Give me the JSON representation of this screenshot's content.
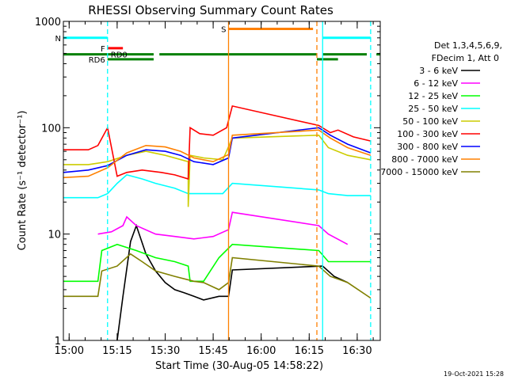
{
  "chart_data": {
    "type": "line",
    "title": "RHESSI Observing Summary Count Rates",
    "xlabel": "Start Time (30-Aug-05 14:58:22)",
    "ylabel": "Count Rate (s⁻¹ detector⁻¹)",
    "y_scale": "log",
    "ylim": [
      1,
      1000
    ],
    "xlim_minutes": [
      14.97,
      16.62
    ],
    "x_tick_labels": [
      "15:00",
      "15:15",
      "15:30",
      "15:45",
      "16:00",
      "16:15",
      "16:30"
    ],
    "y_tick_labels": [
      "1",
      "10",
      "100",
      "1000"
    ],
    "grid": false,
    "legend_position": "right",
    "legend_header": [
      "Det 1,3,4,5,6,9,",
      "FDecim 1, Att 0"
    ],
    "series": [
      {
        "name": "3 - 6 keV",
        "color": "#000000",
        "points": [
          [
            15.25,
            1.0
          ],
          [
            15.28,
            2.6
          ],
          [
            15.32,
            8.5
          ],
          [
            15.35,
            12.0
          ],
          [
            15.4,
            6.5
          ],
          [
            15.45,
            4.5
          ],
          [
            15.5,
            3.5
          ],
          [
            15.55,
            3.0
          ],
          [
            15.6,
            2.8
          ],
          [
            15.65,
            2.6
          ],
          [
            15.7,
            2.4
          ],
          [
            15.78,
            2.6
          ],
          [
            15.83,
            2.6
          ],
          [
            15.85,
            4.6
          ],
          [
            16.32,
            5.0
          ],
          [
            16.38,
            4.0
          ],
          [
            16.45,
            3.5
          ]
        ]
      },
      {
        "name": "6 - 12 keV",
        "color": "#ff00ff",
        "points": [
          [
            15.15,
            10.0
          ],
          [
            15.22,
            10.5
          ],
          [
            15.28,
            12.0
          ],
          [
            15.3,
            14.5
          ],
          [
            15.35,
            12.0
          ],
          [
            15.45,
            10.0
          ],
          [
            15.55,
            9.5
          ],
          [
            15.65,
            9.0
          ],
          [
            15.75,
            9.5
          ],
          [
            15.83,
            11.0
          ],
          [
            15.85,
            16.0
          ],
          [
            16.3,
            12.0
          ],
          [
            16.35,
            10.0
          ],
          [
            16.45,
            8.0
          ]
        ]
      },
      {
        "name": "12 - 25 keV",
        "color": "#00ff00",
        "points": [
          [
            14.97,
            3.6
          ],
          [
            15.15,
            3.6
          ],
          [
            15.17,
            7.0
          ],
          [
            15.25,
            8.0
          ],
          [
            15.35,
            7.0
          ],
          [
            15.45,
            6.0
          ],
          [
            15.55,
            5.5
          ],
          [
            15.62,
            5.0
          ],
          [
            15.63,
            3.6
          ],
          [
            15.7,
            3.6
          ],
          [
            15.78,
            6.0
          ],
          [
            15.85,
            8.0
          ],
          [
            16.3,
            7.0
          ],
          [
            16.35,
            5.5
          ],
          [
            16.4,
            5.5
          ],
          [
            16.57,
            5.5
          ]
        ]
      },
      {
        "name": "25 - 50 keV",
        "color": "#00ffff",
        "points": [
          [
            14.97,
            22.0
          ],
          [
            15.15,
            22.0
          ],
          [
            15.2,
            24.0
          ],
          [
            15.25,
            30.0
          ],
          [
            15.3,
            36.0
          ],
          [
            15.38,
            33.0
          ],
          [
            15.45,
            30.0
          ],
          [
            15.55,
            27.0
          ],
          [
            15.62,
            24.0
          ],
          [
            15.7,
            24.0
          ],
          [
            15.8,
            24.0
          ],
          [
            15.85,
            30.0
          ],
          [
            16.3,
            26.0
          ],
          [
            16.35,
            24.0
          ],
          [
            16.45,
            23.0
          ],
          [
            16.57,
            23.0
          ]
        ]
      },
      {
        "name": "50 - 100 keV",
        "color": "#cccc00",
        "points": [
          [
            14.97,
            45.0
          ],
          [
            15.1,
            45.0
          ],
          [
            15.2,
            48.0
          ],
          [
            15.3,
            55.0
          ],
          [
            15.4,
            60.0
          ],
          [
            15.5,
            55.0
          ],
          [
            15.62,
            48.0
          ],
          [
            15.62,
            18.0
          ],
          [
            15.63,
            55.0
          ],
          [
            15.7,
            52.0
          ],
          [
            15.8,
            50.0
          ],
          [
            15.85,
            80.0
          ],
          [
            16.3,
            85.0
          ],
          [
            16.35,
            65.0
          ],
          [
            16.45,
            55.0
          ],
          [
            16.57,
            50.0
          ]
        ]
      },
      {
        "name": "100 - 300 keV",
        "color": "#ff0000",
        "points": [
          [
            14.97,
            62.0
          ],
          [
            15.1,
            62.0
          ],
          [
            15.15,
            68.0
          ],
          [
            15.2,
            100.0
          ],
          [
            15.25,
            35.0
          ],
          [
            15.3,
            38.0
          ],
          [
            15.38,
            40.0
          ],
          [
            15.48,
            38.0
          ],
          [
            15.55,
            36.0
          ],
          [
            15.62,
            33.0
          ],
          [
            15.63,
            100.0
          ],
          [
            15.68,
            88.0
          ],
          [
            15.75,
            85.0
          ],
          [
            15.82,
            100.0
          ],
          [
            15.85,
            160.0
          ],
          [
            16.3,
            105.0
          ],
          [
            16.36,
            90.0
          ],
          [
            16.4,
            95.0
          ],
          [
            16.48,
            82.0
          ],
          [
            16.57,
            75.0
          ]
        ]
      },
      {
        "name": "300 - 800 keV",
        "color": "#0000ff",
        "points": [
          [
            14.97,
            38.0
          ],
          [
            15.1,
            40.0
          ],
          [
            15.2,
            44.0
          ],
          [
            15.3,
            55.0
          ],
          [
            15.4,
            62.0
          ],
          [
            15.5,
            60.0
          ],
          [
            15.58,
            55.0
          ],
          [
            15.65,
            48.0
          ],
          [
            15.75,
            45.0
          ],
          [
            15.83,
            52.0
          ],
          [
            15.85,
            80.0
          ],
          [
            16.3,
            100.0
          ],
          [
            16.36,
            85.0
          ],
          [
            16.45,
            70.0
          ],
          [
            16.57,
            58.0
          ]
        ]
      },
      {
        "name": "800 - 7000 keV",
        "color": "#ff8000",
        "points": [
          [
            14.97,
            34.0
          ],
          [
            15.1,
            35.0
          ],
          [
            15.2,
            42.0
          ],
          [
            15.3,
            58.0
          ],
          [
            15.4,
            68.0
          ],
          [
            15.5,
            66.0
          ],
          [
            15.58,
            60.0
          ],
          [
            15.65,
            52.0
          ],
          [
            15.75,
            48.0
          ],
          [
            15.83,
            56.0
          ],
          [
            15.85,
            85.0
          ],
          [
            16.3,
            95.0
          ],
          [
            16.36,
            80.0
          ],
          [
            16.45,
            65.0
          ],
          [
            16.57,
            55.0
          ]
        ]
      },
      {
        "name": "7000 - 15000 keV",
        "color": "#808000",
        "points": [
          [
            14.97,
            2.6
          ],
          [
            15.15,
            2.6
          ],
          [
            15.17,
            4.5
          ],
          [
            15.25,
            5.0
          ],
          [
            15.32,
            6.5
          ],
          [
            15.38,
            5.5
          ],
          [
            15.45,
            4.5
          ],
          [
            15.55,
            4.0
          ],
          [
            15.65,
            3.6
          ],
          [
            15.7,
            3.5
          ],
          [
            15.78,
            3.0
          ],
          [
            15.83,
            3.5
          ],
          [
            15.85,
            6.0
          ],
          [
            16.3,
            5.0
          ],
          [
            16.36,
            4.0
          ],
          [
            16.45,
            3.5
          ],
          [
            16.57,
            2.5
          ]
        ]
      }
    ],
    "flags": [
      {
        "label": "N",
        "color": "#00ffff",
        "level": 700,
        "ranges": [
          [
            14.97,
            15.2
          ],
          [
            16.32,
            16.57
          ]
        ]
      },
      {
        "label": "F",
        "color": "#ff0000",
        "level": 560,
        "ranges": [
          [
            15.2,
            15.28
          ]
        ]
      },
      {
        "label": "S",
        "color": "#ff8000",
        "level": 850,
        "ranges": [
          [
            15.83,
            16.27
          ]
        ]
      },
      {
        "label": "RD0",
        "color": "#008000",
        "level": 490,
        "label_side": "right",
        "ranges": [
          [
            14.97,
            15.2
          ],
          [
            15.2,
            15.44
          ],
          [
            15.47,
            15.83
          ],
          [
            15.83,
            16.29
          ],
          [
            16.32,
            16.55
          ],
          [
            16.6,
            16.62
          ]
        ]
      },
      {
        "label": "RD6",
        "color": "#008000",
        "level": 440,
        "ranges": [
          [
            15.2,
            15.44
          ],
          [
            16.29,
            16.4
          ]
        ]
      }
    ],
    "vertical_markers": [
      {
        "x": 15.2,
        "color": "#00ffff",
        "style": "dashed"
      },
      {
        "x": 15.83,
        "color": "#ff8000",
        "style": "solid"
      },
      {
        "x": 16.29,
        "color": "#ff8000",
        "style": "dashed"
      },
      {
        "x": 16.32,
        "color": "#00ffff",
        "style": "solid"
      },
      {
        "x": 16.57,
        "color": "#00ffff",
        "style": "dashed"
      }
    ]
  },
  "footer": {
    "timestamp": "19-Oct-2021 15:28"
  }
}
